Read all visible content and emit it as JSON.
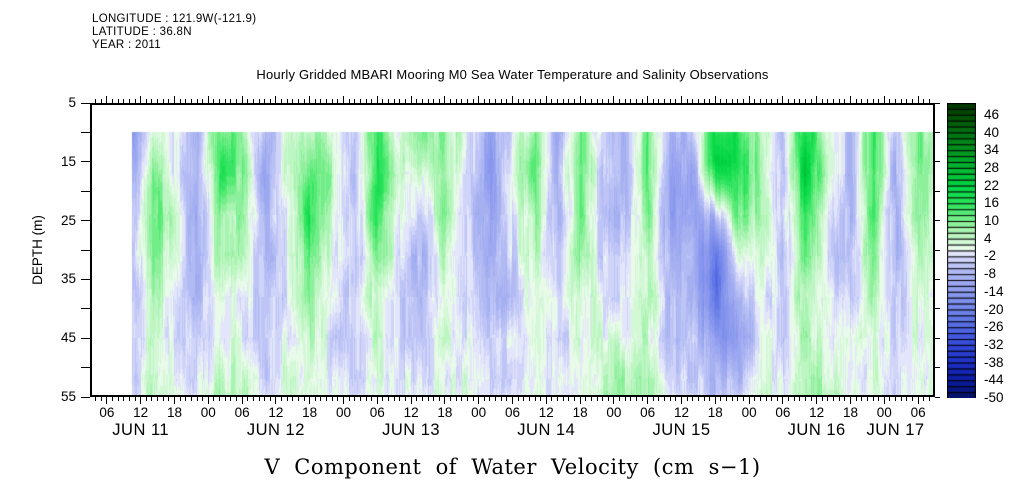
{
  "header": {
    "longitude": "LONGITUDE : 121.9W(-121.9)",
    "latitude": "LATITUDE : 36.8N",
    "year": "YEAR : 2011"
  },
  "title": "Hourly Gridded MBARI Mooring M0 Sea Water Temperature and Salinity Observations",
  "bottom_title": "V Component of Water Velocity (cm s−1)",
  "colors": {
    "background": "#ffffff",
    "text": "#000000",
    "frame": "#000000"
  },
  "y_axis": {
    "label": "DEPTH (m)",
    "tick_labels": [
      "5",
      "15",
      "25",
      "35",
      "45",
      "55"
    ],
    "tick_depths": [
      5,
      15,
      25,
      35,
      45,
      55
    ],
    "minor_tick_depths": [
      10,
      20,
      30,
      40,
      50
    ],
    "range": [
      5,
      55
    ]
  },
  "x_axis": {
    "range_hours": [
      3,
      153
    ],
    "major_tick_step_hours": 6,
    "minor_tick_step_hours": 1,
    "hour_labels": [
      {
        "t": 6,
        "label": "06"
      },
      {
        "t": 12,
        "label": "12"
      },
      {
        "t": 18,
        "label": "18"
      },
      {
        "t": 24,
        "label": "00"
      },
      {
        "t": 30,
        "label": "06"
      },
      {
        "t": 36,
        "label": "12"
      },
      {
        "t": 42,
        "label": "18"
      },
      {
        "t": 48,
        "label": "00"
      },
      {
        "t": 54,
        "label": "06"
      },
      {
        "t": 60,
        "label": "12"
      },
      {
        "t": 66,
        "label": "18"
      },
      {
        "t": 72,
        "label": "00"
      },
      {
        "t": 78,
        "label": "06"
      },
      {
        "t": 84,
        "label": "12"
      },
      {
        "t": 90,
        "label": "18"
      },
      {
        "t": 96,
        "label": "00"
      },
      {
        "t": 102,
        "label": "06"
      },
      {
        "t": 108,
        "label": "12"
      },
      {
        "t": 114,
        "label": "18"
      },
      {
        "t": 120,
        "label": "00"
      },
      {
        "t": 126,
        "label": "06"
      },
      {
        "t": 132,
        "label": "12"
      },
      {
        "t": 138,
        "label": "18"
      },
      {
        "t": 144,
        "label": "00"
      },
      {
        "t": 150,
        "label": "06"
      }
    ],
    "date_labels": [
      {
        "t": 12,
        "label": "JUN 11"
      },
      {
        "t": 36,
        "label": "JUN 12"
      },
      {
        "t": 60,
        "label": "JUN 13"
      },
      {
        "t": 84,
        "label": "JUN 14"
      },
      {
        "t": 108,
        "label": "JUN 15"
      },
      {
        "t": 132,
        "label": "JUN 16"
      },
      {
        "t": 146,
        "label": "JUN 17"
      }
    ]
  },
  "colorbar": {
    "min": -50,
    "max": 50,
    "block_step": 2,
    "tick_labels": [
      {
        "v": 46,
        "label": "46"
      },
      {
        "v": 40,
        "label": "40"
      },
      {
        "v": 34,
        "label": "34"
      },
      {
        "v": 28,
        "label": "28"
      },
      {
        "v": 22,
        "label": "22"
      },
      {
        "v": 16,
        "label": "16"
      },
      {
        "v": 10,
        "label": "10"
      },
      {
        "v": 4,
        "label": "4"
      },
      {
        "v": -2,
        "label": "-2"
      },
      {
        "v": -8,
        "label": "-8"
      },
      {
        "v": -14,
        "label": "-14"
      },
      {
        "v": -20,
        "label": "-20"
      },
      {
        "v": -26,
        "label": "-26"
      },
      {
        "v": -32,
        "label": "-32"
      },
      {
        "v": -38,
        "label": "-38"
      },
      {
        "v": -44,
        "label": "-44"
      },
      {
        "v": -50,
        "label": "-50"
      }
    ],
    "palette_anchors": [
      [
        50,
        "#003000"
      ],
      [
        46,
        "#004d03"
      ],
      [
        40,
        "#007212"
      ],
      [
        34,
        "#00941f"
      ],
      [
        28,
        "#00b531"
      ],
      [
        22,
        "#00d643"
      ],
      [
        16,
        "#2ae35b"
      ],
      [
        12,
        "#63ec7d"
      ],
      [
        8,
        "#9cf2a6"
      ],
      [
        4,
        "#c8f7cc"
      ],
      [
        1,
        "#e8fbe9"
      ],
      [
        0,
        "#f2fcf2"
      ],
      [
        -1,
        "#e3e6fa"
      ],
      [
        -4,
        "#c5cbf7"
      ],
      [
        -8,
        "#aab4f2"
      ],
      [
        -14,
        "#8c9aee"
      ],
      [
        -20,
        "#7186ea"
      ],
      [
        -26,
        "#5268e3"
      ],
      [
        -32,
        "#3349d9"
      ],
      [
        -38,
        "#1d30c4"
      ],
      [
        -44,
        "#0b1b9f"
      ],
      [
        -50,
        "#061260"
      ]
    ]
  },
  "chart_data": {
    "type": "heatmap",
    "title": "Hourly Gridded MBARI Mooring M0 Sea Water Temperature and Salinity Observations",
    "variable": "V Component of Water Velocity",
    "units": "cm s-1",
    "xlabel_dates": [
      "JUN 11",
      "JUN 12",
      "JUN 13",
      "JUN 14",
      "JUN 15",
      "JUN 16",
      "JUN 17"
    ],
    "ylabel": "DEPTH (m)",
    "x_is": "hours since 2011-06-11 00:00",
    "data_start_hour": 10.5,
    "depth_range_m": [
      10,
      55
    ],
    "value_range": [
      -50,
      50
    ],
    "x_hours": [
      10,
      14,
      18,
      22,
      26,
      30,
      34,
      38,
      42,
      46,
      50,
      54,
      58,
      62,
      66,
      70,
      74,
      78,
      82,
      86,
      90,
      94,
      98,
      102,
      106,
      110,
      114,
      118,
      122,
      126,
      134,
      130,
      138,
      142,
      146,
      150,
      153
    ],
    "depths": [
      10,
      15,
      20,
      25,
      30,
      35,
      40,
      45,
      50,
      55
    ],
    "note": "values estimated from rendered colors; columns are depth profiles (10 m to 55 m) at x_hours",
    "values": [
      [
        -16,
        -14,
        -12,
        -10,
        -8,
        -8,
        -6,
        -6,
        -4,
        -4
      ],
      [
        4,
        8,
        12,
        12,
        10,
        8,
        6,
        4,
        2,
        4
      ],
      [
        -2,
        0,
        2,
        4,
        2,
        0,
        -2,
        -2,
        0,
        2
      ],
      [
        -8,
        -8,
        -10,
        -10,
        -8,
        -8,
        -6,
        -6,
        -4,
        -2
      ],
      [
        14,
        16,
        14,
        10,
        6,
        4,
        2,
        2,
        4,
        6
      ],
      [
        8,
        10,
        8,
        6,
        4,
        2,
        0,
        0,
        2,
        4
      ],
      [
        -8,
        -10,
        -10,
        -8,
        -8,
        -6,
        -6,
        -4,
        -4,
        -2
      ],
      [
        0,
        2,
        2,
        0,
        -2,
        -2,
        -2,
        0,
        2,
        2
      ],
      [
        8,
        12,
        16,
        18,
        14,
        10,
        8,
        6,
        4,
        4
      ],
      [
        4,
        6,
        6,
        4,
        2,
        0,
        0,
        -2,
        -2,
        0
      ],
      [
        -8,
        -8,
        -8,
        -6,
        -6,
        -6,
        -4,
        -4,
        -2,
        -2
      ],
      [
        16,
        18,
        20,
        16,
        12,
        8,
        6,
        4,
        4,
        2
      ],
      [
        2,
        4,
        2,
        0,
        -2,
        -4,
        -4,
        -2,
        0,
        0
      ],
      [
        8,
        4,
        -2,
        -6,
        -8,
        -8,
        -6,
        -4,
        -2,
        0
      ],
      [
        8,
        10,
        10,
        8,
        6,
        4,
        2,
        2,
        0,
        2
      ],
      [
        0,
        -2,
        -4,
        -4,
        -4,
        -2,
        -2,
        0,
        0,
        2
      ],
      [
        -10,
        -12,
        -12,
        -10,
        -10,
        -8,
        -8,
        -6,
        -4,
        -4
      ],
      [
        -2,
        0,
        0,
        -2,
        -2,
        -4,
        -4,
        -2,
        -2,
        0
      ],
      [
        10,
        12,
        10,
        8,
        6,
        4,
        2,
        0,
        0,
        2
      ],
      [
        -10,
        -8,
        -8,
        -8,
        -6,
        -6,
        -4,
        -4,
        -2,
        -2
      ],
      [
        12,
        14,
        12,
        10,
        8,
        6,
        4,
        2,
        0,
        0
      ],
      [
        -4,
        -4,
        -6,
        -6,
        -4,
        -2,
        0,
        2,
        4,
        6
      ],
      [
        -8,
        -8,
        -8,
        -6,
        -6,
        -4,
        -2,
        2,
        6,
        8
      ],
      [
        12,
        14,
        12,
        10,
        8,
        6,
        6,
        4,
        4,
        6
      ],
      [
        -8,
        -10,
        -12,
        -12,
        -10,
        -8,
        -6,
        -6,
        -4,
        -2
      ],
      [
        -6,
        -10,
        -12,
        -10,
        -8,
        -8,
        -6,
        -4,
        -4,
        -2
      ],
      [
        20,
        22,
        8,
        -10,
        -22,
        -26,
        -22,
        -14,
        -8,
        -6
      ],
      [
        18,
        20,
        16,
        10,
        2,
        -4,
        -10,
        -14,
        -10,
        -4
      ],
      [
        6,
        8,
        8,
        6,
        4,
        2,
        0,
        0,
        2,
        4
      ],
      [
        -6,
        -6,
        -8,
        -6,
        -6,
        -4,
        -4,
        -2,
        -2,
        0
      ],
      [
        4,
        4,
        2,
        0,
        -2,
        -2,
        0,
        2,
        4,
        6
      ],
      [
        22,
        24,
        22,
        18,
        14,
        10,
        8,
        6,
        6,
        8
      ],
      [
        -8,
        -8,
        -8,
        -8,
        -6,
        -6,
        -4,
        -2,
        -2,
        0
      ],
      [
        14,
        16,
        14,
        12,
        10,
        8,
        6,
        4,
        2,
        2
      ],
      [
        -8,
        -10,
        -10,
        -8,
        -8,
        -6,
        -6,
        -4,
        -2,
        -2
      ],
      [
        10,
        12,
        10,
        8,
        6,
        4,
        2,
        2,
        0,
        0
      ],
      [
        6,
        8,
        6,
        4,
        2,
        2,
        0,
        0,
        0,
        2
      ]
    ]
  }
}
